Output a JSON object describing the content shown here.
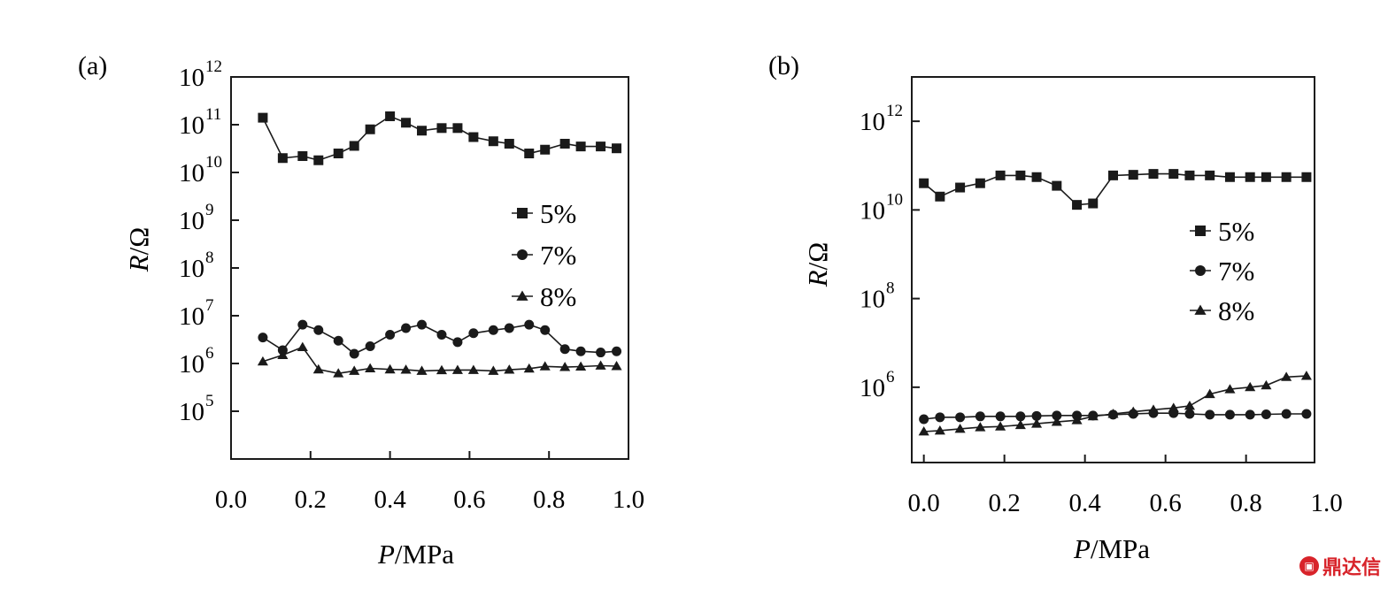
{
  "watermark": {
    "text": "鼎达信"
  },
  "chart_data": [
    {
      "type": "line",
      "panel_label": "(a)",
      "xlabel_var": "P",
      "xlabel_unit": "/MPa",
      "ylabel_var": "R",
      "ylabel_unit": "/Ω",
      "yscale": "log",
      "xlim": [
        0.0,
        1.0
      ],
      "ylim": [
        10000,
        1000000000000
      ],
      "xticks": [
        0.0,
        0.2,
        0.4,
        0.6,
        0.8,
        1.0
      ],
      "xtick_labels": [
        "0.0",
        "0.2",
        "0.4",
        "0.6",
        "0.8",
        "1.0"
      ],
      "yticks": [
        {
          "base": "10",
          "exp": "5",
          "value": 100000
        },
        {
          "base": "10",
          "exp": "6",
          "value": 1000000
        },
        {
          "base": "10",
          "exp": "7",
          "value": 10000000
        },
        {
          "base": "10",
          "exp": "8",
          "value": 100000000
        },
        {
          "base": "10",
          "exp": "9",
          "value": 1000000000
        },
        {
          "base": "10",
          "exp": "10",
          "value": 10000000000
        },
        {
          "base": "10",
          "exp": "11",
          "value": 100000000000
        },
        {
          "base": "10",
          "exp": "12",
          "value": 1000000000000
        }
      ],
      "legend_position": "right",
      "series": [
        {
          "name": "5%",
          "marker": "square",
          "x": [
            0.08,
            0.13,
            0.18,
            0.22,
            0.27,
            0.31,
            0.35,
            0.4,
            0.44,
            0.48,
            0.53,
            0.57,
            0.61,
            0.66,
            0.7,
            0.75,
            0.79,
            0.84,
            0.88,
            0.93,
            0.97
          ],
          "y": [
            140000000000,
            20000000000,
            22000000000,
            18000000000,
            25000000000,
            36000000000,
            80000000000,
            150000000000,
            110000000000,
            75000000000,
            85000000000,
            85000000000,
            55000000000,
            45000000000,
            40000000000,
            25000000000,
            30000000000,
            40000000000,
            35000000000,
            35000000000,
            32000000000
          ]
        },
        {
          "name": "7%",
          "marker": "circle",
          "x": [
            0.08,
            0.13,
            0.18,
            0.22,
            0.27,
            0.31,
            0.35,
            0.4,
            0.44,
            0.48,
            0.53,
            0.57,
            0.61,
            0.66,
            0.7,
            0.75,
            0.79,
            0.84,
            0.88,
            0.93,
            0.97
          ],
          "y": [
            3500000,
            1900000,
            6500000,
            5000000,
            3000000,
            1600000,
            2300000,
            4000000,
            5500000,
            6500000,
            4000000,
            2800000,
            4300000,
            5000000,
            5500000,
            6500000,
            5000000,
            2000000,
            1800000,
            1700000,
            1800000
          ]
        },
        {
          "name": "8%",
          "marker": "triangle",
          "x": [
            0.08,
            0.13,
            0.18,
            0.22,
            0.27,
            0.31,
            0.35,
            0.4,
            0.44,
            0.48,
            0.53,
            0.57,
            0.61,
            0.66,
            0.7,
            0.75,
            0.79,
            0.84,
            0.88,
            0.93,
            0.97
          ],
          "y": [
            1100000,
            1500000,
            2200000,
            750000,
            620000,
            700000,
            790000,
            750000,
            740000,
            700000,
            720000,
            730000,
            730000,
            700000,
            740000,
            780000,
            870000,
            840000,
            860000,
            900000,
            880000
          ]
        }
      ]
    },
    {
      "type": "line",
      "panel_label": "(b)",
      "xlabel_var": "P",
      "xlabel_unit": "/MPa",
      "ylabel_var": "R",
      "ylabel_unit": "/Ω",
      "yscale": "log",
      "xlim": [
        -0.03,
        0.97
      ],
      "ylim": [
        20000,
        10000000000000
      ],
      "xticks": [
        0.0,
        0.2,
        0.4,
        0.6,
        0.8,
        1.0
      ],
      "xtick_labels": [
        "0.0",
        "0.2",
        "0.4",
        "0.6",
        "0.8",
        "1.0"
      ],
      "yticks": [
        {
          "base": "10",
          "exp": "6",
          "value": 1000000
        },
        {
          "base": "10",
          "exp": "8",
          "value": 100000000
        },
        {
          "base": "10",
          "exp": "10",
          "value": 10000000000
        },
        {
          "base": "10",
          "exp": "12",
          "value": 1000000000000
        }
      ],
      "legend_position": "right",
      "series": [
        {
          "name": "5%",
          "marker": "square",
          "x": [
            0.0,
            0.04,
            0.09,
            0.14,
            0.19,
            0.24,
            0.28,
            0.33,
            0.38,
            0.42,
            0.47,
            0.52,
            0.57,
            0.62,
            0.66,
            0.71,
            0.76,
            0.81,
            0.85,
            0.9,
            0.95
          ],
          "y": [
            40000000000,
            20000000000,
            32000000000,
            40000000000,
            60000000000,
            60000000000,
            55000000000,
            35000000000,
            13000000000,
            14000000000,
            60000000000,
            62000000000,
            65000000000,
            65000000000,
            60000000000,
            60000000000,
            55000000000,
            55000000000,
            55000000000,
            55000000000,
            55000000000
          ]
        },
        {
          "name": "7%",
          "marker": "circle",
          "x": [
            0.0,
            0.04,
            0.09,
            0.14,
            0.19,
            0.24,
            0.28,
            0.33,
            0.38,
            0.42,
            0.47,
            0.52,
            0.57,
            0.62,
            0.66,
            0.71,
            0.76,
            0.81,
            0.85,
            0.9,
            0.95
          ],
          "y": [
            190000,
            210000,
            210000,
            220000,
            220000,
            220000,
            225000,
            230000,
            230000,
            230000,
            240000,
            250000,
            260000,
            260000,
            250000,
            240000,
            240000,
            240000,
            245000,
            250000,
            250000
          ]
        },
        {
          "name": "8%",
          "marker": "triangle",
          "x": [
            0.0,
            0.04,
            0.09,
            0.14,
            0.19,
            0.24,
            0.28,
            0.33,
            0.38,
            0.42,
            0.47,
            0.52,
            0.57,
            0.62,
            0.66,
            0.71,
            0.76,
            0.81,
            0.85,
            0.9,
            0.95
          ],
          "y": [
            100000,
            105000,
            115000,
            125000,
            130000,
            140000,
            150000,
            165000,
            180000,
            220000,
            250000,
            280000,
            310000,
            340000,
            380000,
            700000,
            900000,
            1000000,
            1100000,
            1700000,
            1800000
          ]
        }
      ]
    }
  ]
}
